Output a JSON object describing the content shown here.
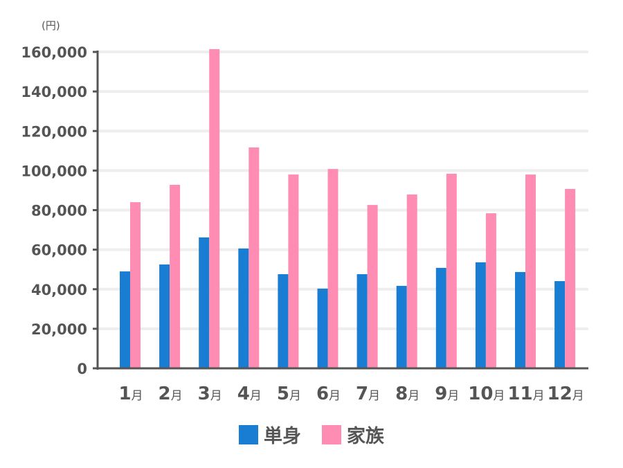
{
  "chart_data": {
    "type": "bar",
    "title": "",
    "unit_label": "(円)",
    "xlabel": "",
    "ylabel": "(円)",
    "ylim": [
      0,
      160000
    ],
    "yticks": [
      0,
      20000,
      40000,
      60000,
      80000,
      100000,
      120000,
      140000,
      160000
    ],
    "ytick_labels": [
      "0",
      "20,000",
      "40,000",
      "60,000",
      "80,000",
      "100,000",
      "120,000",
      "140,000",
      "160,000"
    ],
    "grid": true,
    "legend_position": "bottom",
    "categories": [
      "1月",
      "2月",
      "3月",
      "4月",
      "5月",
      "6月",
      "7月",
      "8月",
      "9月",
      "10月",
      "11月",
      "12月"
    ],
    "category_numbers": [
      "1",
      "2",
      "3",
      "4",
      "5",
      "6",
      "7",
      "8",
      "9",
      "10",
      "11",
      "12"
    ],
    "category_suffix": "月",
    "series": [
      {
        "name": "単身",
        "color": "#1a7dd4",
        "values": [
          49000,
          52500,
          66200,
          60600,
          47600,
          40300,
          47600,
          41700,
          50800,
          53600,
          48700,
          44100
        ]
      },
      {
        "name": "家族",
        "color": "#ff8db3",
        "values": [
          84000,
          92800,
          161400,
          111700,
          98000,
          100800,
          82600,
          87900,
          98400,
          78400,
          98000,
          90700
        ]
      }
    ]
  },
  "colors": {
    "axis": "#555555",
    "grid": "#eeeeee",
    "single": "#1a7dd4",
    "family": "#ff8db3"
  },
  "legend": {
    "items": [
      {
        "label": "単身",
        "color": "#1a7dd4"
      },
      {
        "label": "家族",
        "color": "#ff8db3"
      }
    ]
  }
}
